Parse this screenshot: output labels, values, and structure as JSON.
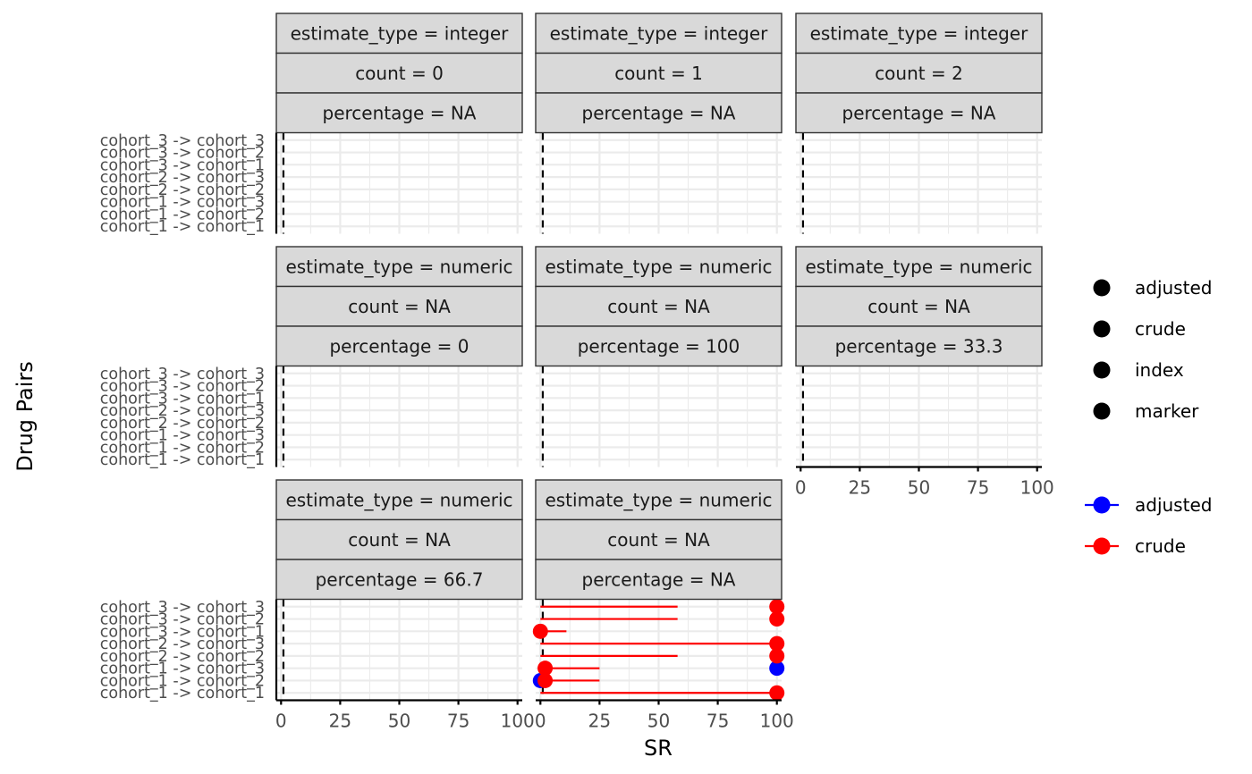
{
  "chart_data": {
    "type": "scatter",
    "xlabel": "SR",
    "ylabel": "Drug Pairs",
    "x_ticks": [
      "0",
      "25",
      "50",
      "75",
      "100"
    ],
    "xlim": [
      -2,
      102
    ],
    "reference_line_x": 1,
    "categories": [
      "cohort_1 -> cohort_1",
      "cohort_1 -> cohort_2",
      "cohort_1 -> cohort_3",
      "cohort_2 -> cohort_2",
      "cohort_2 -> cohort_3",
      "cohort_3 -> cohort_1",
      "cohort_3 -> cohort_2",
      "cohort_3 -> cohort_3"
    ],
    "facets": [
      {
        "strips": [
          "estimate_type = integer",
          "count = 0",
          "percentage = NA"
        ],
        "series": []
      },
      {
        "strips": [
          "estimate_type = integer",
          "count = 1",
          "percentage = NA"
        ],
        "series": []
      },
      {
        "strips": [
          "estimate_type = integer",
          "count = 2",
          "percentage = NA"
        ],
        "series": []
      },
      {
        "strips": [
          "estimate_type = numeric",
          "count = NA",
          "percentage = 0"
        ],
        "series": []
      },
      {
        "strips": [
          "estimate_type = numeric",
          "count = NA",
          "percentage = 100"
        ],
        "series": []
      },
      {
        "strips": [
          "estimate_type = numeric",
          "count = NA",
          "percentage = 33.3"
        ],
        "series": []
      },
      {
        "strips": [
          "estimate_type = numeric",
          "count = NA",
          "percentage = 66.7"
        ],
        "series": []
      },
      {
        "strips": [
          "estimate_type = numeric",
          "count = NA",
          "percentage = NA"
        ],
        "series": [
          {
            "name": "adjusted",
            "color": "#0000ff",
            "values": [
              null,
              0,
              100,
              null,
              null,
              null,
              null,
              null
            ]
          },
          {
            "name": "crude",
            "color": "#ff0000",
            "values": [
              100,
              2,
              2,
              100,
              100,
              0,
              100,
              100
            ]
          }
        ],
        "segments": [
          {
            "category": "cohort_1 -> cohort_1",
            "x": [
              0,
              100
            ]
          },
          {
            "category": "cohort_1 -> cohort_2",
            "x": [
              0,
              25
            ]
          },
          {
            "category": "cohort_1 -> cohort_3",
            "x": [
              0,
              25
            ]
          },
          {
            "category": "cohort_2 -> cohort_2",
            "x": [
              0,
              58
            ]
          },
          {
            "category": "cohort_2 -> cohort_3",
            "x": [
              0,
              100
            ]
          },
          {
            "category": "cohort_3 -> cohort_1",
            "x": [
              0,
              11
            ]
          },
          {
            "category": "cohort_3 -> cohort_2",
            "x": [
              0,
              58
            ]
          },
          {
            "category": "cohort_3 -> cohort_3",
            "x": [
              0,
              58
            ]
          }
        ]
      }
    ],
    "legends": [
      {
        "entries": [
          {
            "label": "adjusted",
            "color": "#000000"
          },
          {
            "label": "crude",
            "color": "#000000"
          },
          {
            "label": "index",
            "color": "#000000"
          },
          {
            "label": "marker",
            "color": "#000000"
          }
        ]
      },
      {
        "entries": [
          {
            "label": "adjusted",
            "color": "#0000ff"
          },
          {
            "label": "crude",
            "color": "#ff0000"
          }
        ]
      }
    ]
  }
}
